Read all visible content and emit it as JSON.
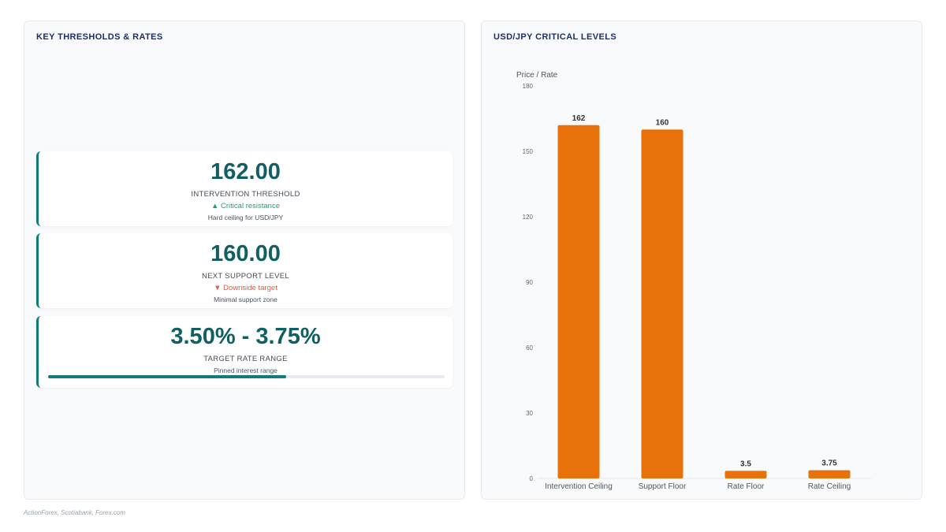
{
  "left_panel": {
    "title": "KEY THRESHOLDS & RATES",
    "kpis": [
      {
        "value": "162.00",
        "label": "INTERVENTION THRESHOLD",
        "trend": "▲ Critical resistance",
        "trend_direction": "up",
        "note": "Hard ceiling for USD/JPY"
      },
      {
        "value": "160.00",
        "label": "NEXT SUPPORT LEVEL",
        "trend": "▼ Downside target",
        "trend_direction": "down",
        "note": "Minimal support zone"
      },
      {
        "value": "3.50% - 3.75%",
        "label": "TARGET RATE RANGE",
        "note": "Pinned interest range",
        "progress": 0.6
      }
    ]
  },
  "right_panel": {
    "title": "USD/JPY CRITICAL LEVELS"
  },
  "colors": {
    "bar": "#e8710a",
    "accent": "#137a7a",
    "title": "#1a2e6b"
  },
  "chart_data": {
    "type": "bar",
    "title": "USD/JPY CRITICAL LEVELS",
    "ylabel": "Price / Rate",
    "xlabel": "",
    "categories": [
      "Intervention Ceiling",
      "Support Floor",
      "Rate Floor",
      "Rate Ceiling"
    ],
    "values": [
      162,
      160,
      3.5,
      3.75
    ],
    "data_labels": [
      "162",
      "160",
      "3.5",
      "3.75"
    ],
    "ylim": [
      0,
      180
    ],
    "yticks": [
      0,
      30,
      60,
      90,
      120,
      150,
      180
    ],
    "grid": false,
    "legend": "none"
  },
  "footer": {
    "source": "ActionForex, Scotiabank, Forex.com"
  }
}
